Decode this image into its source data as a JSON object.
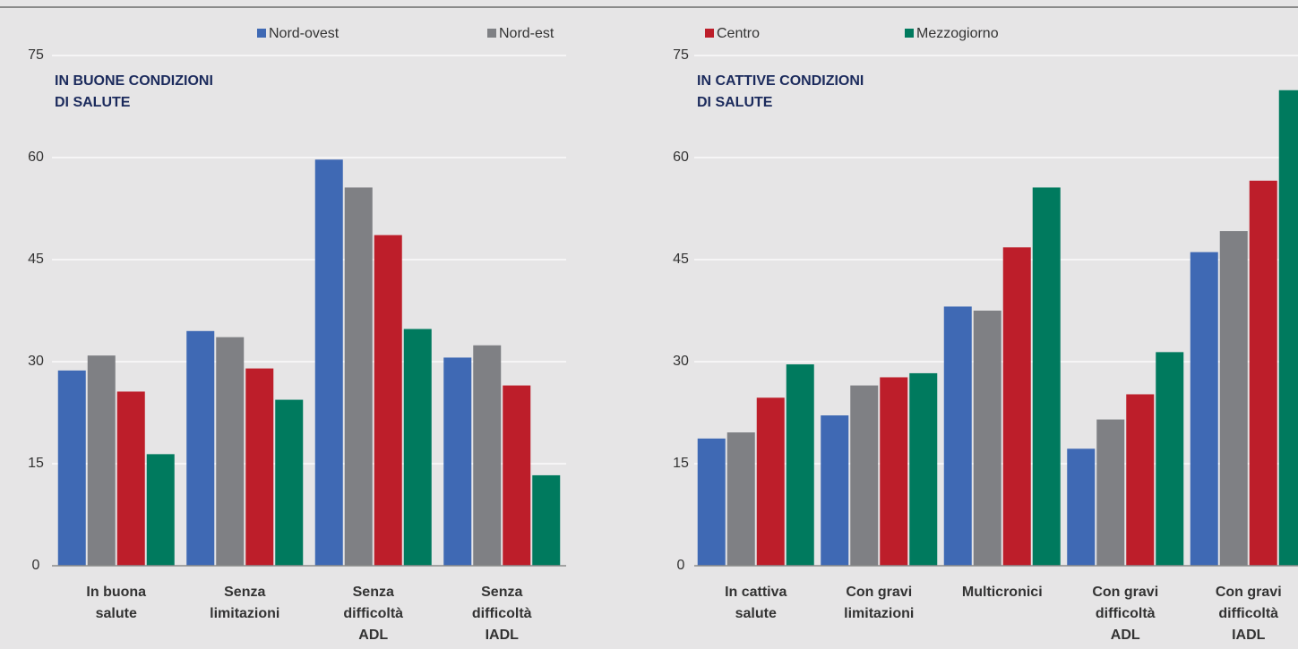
{
  "legend": [
    {
      "name": "Nord-ovest",
      "color": "#3f69b4"
    },
    {
      "name": "Nord-est",
      "color": "#7f8084"
    },
    {
      "name": "Centro",
      "color": "#bd1e2a"
    },
    {
      "name": "Mezzogiorno",
      "color": "#007a5e"
    }
  ],
  "chart_data": [
    {
      "type": "bar",
      "title": [
        "IN BUONE CONDIZIONI",
        "DI SALUTE"
      ],
      "categories": [
        [
          "In buona",
          "salute"
        ],
        [
          "Senza",
          "limitazioni"
        ],
        [
          "Senza",
          "difficoltà",
          "ADL"
        ],
        [
          "Senza",
          "difficoltà",
          "IADL"
        ]
      ],
      "series": [
        {
          "values": [
            28.7,
            34.5,
            59.7,
            30.6
          ]
        },
        {
          "values": [
            30.9,
            33.6,
            55.6,
            32.4
          ]
        },
        {
          "values": [
            25.6,
            29.0,
            48.6,
            26.5
          ]
        },
        {
          "values": [
            16.4,
            24.4,
            34.8,
            13.3
          ]
        }
      ],
      "ylim": [
        0,
        75
      ],
      "yticks": [
        0,
        15,
        30,
        45,
        60,
        75
      ],
      "grid": true
    },
    {
      "type": "bar",
      "title": [
        "IN CATTIVE CONDIZIONI",
        "DI SALUTE"
      ],
      "categories": [
        [
          "In cattiva",
          "salute"
        ],
        [
          "Con gravi",
          "limitazioni"
        ],
        [
          "Multicronici"
        ],
        [
          "Con gravi",
          "difficoltà",
          "ADL"
        ],
        [
          "Con gravi",
          "difficoltà",
          "IADL"
        ]
      ],
      "series": [
        {
          "values": [
            18.7,
            22.1,
            38.1,
            17.2,
            46.1
          ]
        },
        {
          "values": [
            19.6,
            26.5,
            37.5,
            21.5,
            49.2
          ]
        },
        {
          "values": [
            24.7,
            27.7,
            46.8,
            25.2,
            56.6
          ]
        },
        {
          "values": [
            29.6,
            28.3,
            55.6,
            31.4,
            69.9
          ]
        }
      ],
      "ylim": [
        0,
        75
      ],
      "yticks": [
        0,
        15,
        30,
        45,
        60,
        75
      ],
      "grid": true
    }
  ]
}
